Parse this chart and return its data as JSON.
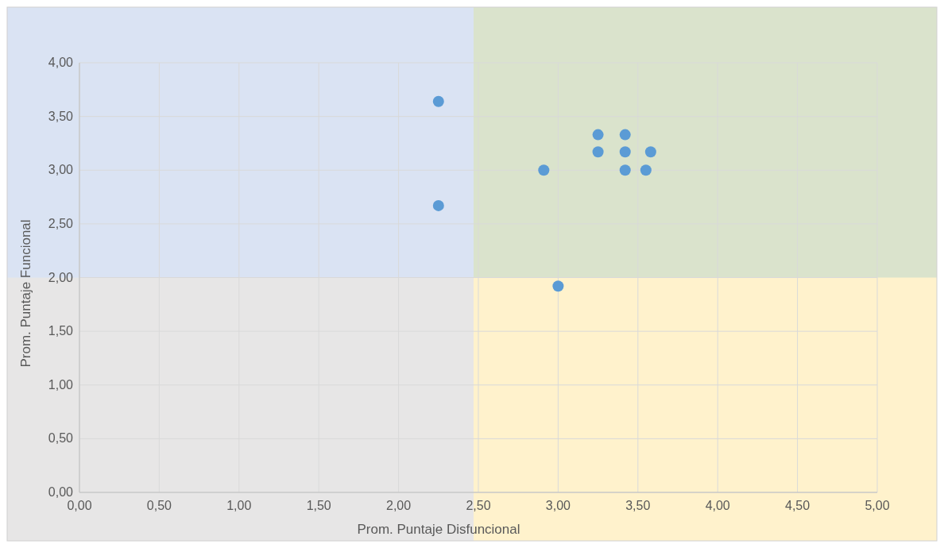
{
  "chart_data": {
    "type": "scatter",
    "xlabel": "Prom. Puntaje Disfuncional",
    "ylabel": "Prom. Puntaje Funcional",
    "x": [
      2.25,
      2.25,
      2.91,
      3.0,
      3.25,
      3.25,
      3.42,
      3.42,
      3.42,
      3.55,
      3.58
    ],
    "series": [
      {
        "color": "#5b9bd5",
        "values": [
          3.64,
          2.67,
          3.0,
          1.92,
          3.33,
          3.17,
          3.33,
          3.17,
          3.0,
          3.0,
          3.17
        ]
      }
    ],
    "xlim": [
      0,
      5
    ],
    "ylim": [
      0,
      4
    ],
    "xticks": [
      {
        "value": 0,
        "label": "0,00"
      },
      {
        "value": 0.5,
        "label": "0,50"
      },
      {
        "value": 1,
        "label": "1,00"
      },
      {
        "value": 1.5,
        "label": "1,50"
      },
      {
        "value": 2,
        "label": "2,00"
      },
      {
        "value": 2.5,
        "label": "2,50"
      },
      {
        "value": 3,
        "label": "3,00"
      },
      {
        "value": 3.5,
        "label": "3,50"
      },
      {
        "value": 4,
        "label": "4,00"
      },
      {
        "value": 4.5,
        "label": "4,50"
      },
      {
        "value": 5,
        "label": "5,00"
      }
    ],
    "yticks": [
      {
        "value": 0,
        "label": "0,00"
      },
      {
        "value": 0.5,
        "label": "0,50"
      },
      {
        "value": 1,
        "label": "1,00"
      },
      {
        "value": 1.5,
        "label": "1,50"
      },
      {
        "value": 2,
        "label": "2,00"
      },
      {
        "value": 2.5,
        "label": "2,50"
      },
      {
        "value": 3,
        "label": "3,00"
      },
      {
        "value": 3.5,
        "label": "3,50"
      },
      {
        "value": 4,
        "label": "4,00"
      }
    ],
    "bands": [
      {
        "axis": "x",
        "from": 2.47,
        "to": 5,
        "color": "#fff2cc"
      },
      {
        "axis": "y",
        "from": 2,
        "to": 4,
        "color": "#dae3f3"
      }
    ],
    "grid": true,
    "marker": "circle"
  }
}
